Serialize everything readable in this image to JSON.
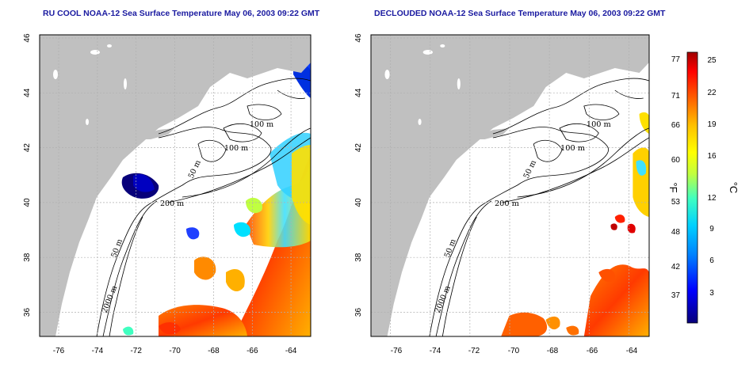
{
  "titles": {
    "left": "RU COOL NOAA-12 Sea Surface Temperature May 06, 2003 09:22 GMT",
    "right": "DECLOUDED NOAA-12 Sea Surface Temperature May 06, 2003 09:22 GMT"
  },
  "axes": {
    "lon_ticks": [
      "-76",
      "-74",
      "-72",
      "-70",
      "-68",
      "-66",
      "-64"
    ],
    "lat_ticks": [
      "46",
      "44",
      "42",
      "40",
      "38",
      "36"
    ],
    "lon_range": [
      -77.0,
      -63.0
    ],
    "lat_range": [
      35.0,
      46.0
    ],
    "grid": "dashed"
  },
  "contour_labels": {
    "c100a": "100 m",
    "c100b": "100 m",
    "c50a": "50 m",
    "c200": "200 m",
    "c50b": "50 m",
    "c2000": "2000 m"
  },
  "colorbar": {
    "fahrenheit": [
      "77",
      "71",
      "66",
      "60",
      "53",
      "48",
      "42",
      "37"
    ],
    "celsius": [
      "25",
      "22",
      "19",
      "16",
      "12",
      "9",
      "6",
      "3"
    ],
    "f_unit": "°F",
    "c_unit": "°C",
    "range_c": [
      0,
      26
    ],
    "colors": [
      "#08007a",
      "#0000ff",
      "#0080ff",
      "#00d0ff",
      "#40ffc0",
      "#c0ff40",
      "#ffff00",
      "#ffc000",
      "#ff6000",
      "#ff0000",
      "#a00000"
    ]
  },
  "colors": {
    "land": "#c0c0c0",
    "title": "#1a1aa0"
  }
}
